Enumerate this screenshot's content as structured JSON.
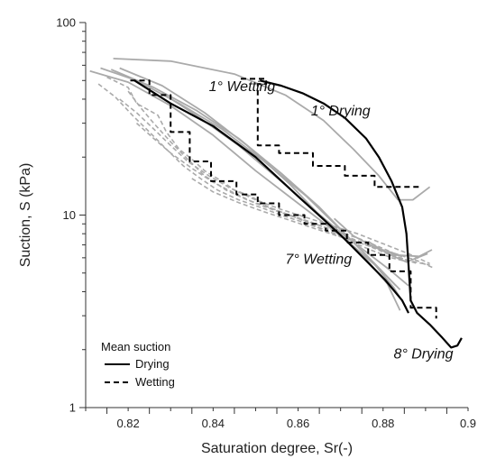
{
  "chart_data": {
    "type": "line",
    "xlabel": "Saturation degree, Sr(-)",
    "ylabel": "Suction, S (kPa)",
    "xlim": [
      0.81,
      0.9
    ],
    "ylim": [
      1,
      100
    ],
    "yscale": "log",
    "x_ticks": [
      {
        "value": 0.82,
        "label": "0.82"
      },
      {
        "value": 0.84,
        "label": "0.84"
      },
      {
        "value": 0.86,
        "label": "0.86"
      },
      {
        "value": 0.88,
        "label": "0.88"
      },
      {
        "value": 0.9,
        "label": "0.9"
      }
    ],
    "y_ticks": [
      {
        "value": 1,
        "label": "1"
      },
      {
        "value": 10,
        "label": "10"
      },
      {
        "value": 100,
        "label": "100"
      }
    ],
    "grid": false,
    "legend": {
      "title": "Mean suction",
      "position": "bottom-left",
      "entries": [
        {
          "label": "Drying",
          "style": "solid"
        },
        {
          "label": "Wetting",
          "style": "dashed"
        }
      ]
    },
    "annotations": [
      {
        "text": "1° Wetting",
        "x": 0.839,
        "y": 44
      },
      {
        "text": "1° Drying",
        "x": 0.863,
        "y": 33
      },
      {
        "text": "7° Wetting",
        "x": 0.857,
        "y": 5.6
      },
      {
        "text": "8° Drying",
        "x": 0.8825,
        "y": 1.8
      }
    ],
    "series": [
      {
        "style": "drying-mean",
        "color": "#000000",
        "x": [
          0.851,
          0.856,
          0.861,
          0.866,
          0.871,
          0.876,
          0.879,
          0.882,
          0.8845,
          0.8855,
          0.886,
          0.8865,
          0.888,
          0.891,
          0.894,
          0.896,
          0.8975,
          0.8985
        ],
        "y": [
          50,
          47,
          43,
          38,
          32,
          25,
          20,
          15,
          11,
          8,
          5.5,
          3.6,
          3.1,
          2.7,
          2.3,
          2.05,
          2.1,
          2.3
        ]
      },
      {
        "style": "drying-mean",
        "color": "#000000",
        "x": [
          0.8215,
          0.83,
          0.84,
          0.85,
          0.86,
          0.866,
          0.871,
          0.876,
          0.8805,
          0.8845,
          0.886
        ],
        "y": [
          50,
          38,
          29,
          20,
          12.5,
          9.5,
          7.5,
          5.8,
          4.6,
          3.6,
          3.1
        ]
      },
      {
        "style": "wetting-mean",
        "color": "#000000",
        "x": [
          0.8465,
          0.8525,
          0.8525,
          0.8505,
          0.8505,
          0.8555,
          0.8555,
          0.8635,
          0.8635,
          0.871,
          0.871,
          0.878,
          0.878,
          0.8885
        ],
        "y": [
          51,
          51,
          48,
          48,
          23,
          23,
          21,
          21,
          18,
          18,
          16,
          16,
          14,
          14
        ]
      },
      {
        "style": "wetting-mean",
        "color": "#000000",
        "x": [
          0.8205,
          0.825,
          0.825,
          0.83,
          0.83,
          0.8345,
          0.8345,
          0.8395,
          0.8395,
          0.8455,
          0.8455,
          0.8505,
          0.8505,
          0.8555,
          0.8555,
          0.8615,
          0.8615,
          0.8665,
          0.8665,
          0.8715,
          0.8715,
          0.8765,
          0.8765,
          0.8815,
          0.8815,
          0.8865,
          0.8865,
          0.8925,
          0.8925
        ],
        "y": [
          50,
          50,
          42,
          42,
          27,
          27,
          19,
          19,
          15,
          15,
          12.8,
          12.8,
          11.5,
          11.5,
          10,
          10,
          9,
          9,
          8.3,
          8.3,
          7.2,
          7.2,
          6.2,
          6.2,
          5.1,
          5.1,
          3.3,
          3.3,
          2.9
        ]
      },
      {
        "style": "drying-test",
        "color": "#aaaaaa",
        "x": [
          0.8165,
          0.83,
          0.845,
          0.857,
          0.866,
          0.873,
          0.879,
          0.8835,
          0.887,
          0.891
        ],
        "y": [
          65,
          63,
          54,
          42,
          31,
          22,
          16,
          12,
          12,
          14
        ]
      },
      {
        "style": "drying-test",
        "color": "#aaaaaa",
        "x": [
          0.811,
          0.82,
          0.83,
          0.84,
          0.85,
          0.86,
          0.87,
          0.876,
          0.881,
          0.884
        ],
        "y": [
          56,
          49,
          37,
          26,
          17,
          11.5,
          7.8,
          5.9,
          4.4,
          3.2
        ]
      },
      {
        "style": "drying-test",
        "color": "#aaaaaa",
        "x": [
          0.8135,
          0.822,
          0.832,
          0.842,
          0.852,
          0.862,
          0.87,
          0.877,
          0.8825,
          0.8855
        ],
        "y": [
          58,
          50,
          38,
          28,
          19,
          12.5,
          8.4,
          5.9,
          4.2,
          3.3
        ]
      },
      {
        "style": "drying-test",
        "color": "#aaaaaa",
        "x": [
          0.816,
          0.826,
          0.836,
          0.846,
          0.856,
          0.865,
          0.872,
          0.878,
          0.883
        ],
        "y": [
          57,
          46,
          35,
          25,
          16.5,
          11,
          7.6,
          5.6,
          4.3
        ]
      },
      {
        "style": "drying-test",
        "color": "#aaaaaa",
        "x": [
          0.818,
          0.828,
          0.838,
          0.848,
          0.858,
          0.866,
          0.873,
          0.879,
          0.884
        ],
        "y": [
          58,
          47,
          34,
          23,
          14.5,
          9.5,
          6.9,
          5.3,
          4.1
        ]
      },
      {
        "style": "drying-test",
        "color": "#aaaaaa",
        "x": [
          0.828,
          0.836,
          0.846,
          0.856,
          0.864,
          0.871,
          0.877,
          0.882,
          0.886
        ],
        "y": [
          43,
          33,
          23,
          15,
          10.5,
          7.8,
          6.2,
          5.1,
          4.3
        ]
      },
      {
        "style": "drying-test",
        "color": "#aaaaaa",
        "x": [
          0.8685,
          0.873,
          0.878,
          0.883,
          0.8885,
          0.8915
        ],
        "y": [
          9.6,
          7.8,
          6.8,
          6.2,
          6.1,
          6.6
        ]
      },
      {
        "style": "drying-test",
        "color": "#aaaaaa",
        "x": [
          0.8765,
          0.881,
          0.8855,
          0.8905
        ],
        "y": [
          7.3,
          6.3,
          5.7,
          6.3
        ]
      },
      {
        "style": "wetting-test",
        "color": "#aaaaaa",
        "x": [
          0.815,
          0.82,
          0.822,
          0.827,
          0.829,
          0.832,
          0.835,
          0.838,
          0.842,
          0.845,
          0.849,
          0.853,
          0.857,
          0.861,
          0.865,
          0.869,
          0.873,
          0.877,
          0.882,
          0.886
        ],
        "y": [
          52,
          46,
          38,
          33,
          27,
          22,
          19.5,
          17,
          15,
          13.5,
          12.5,
          11,
          10.2,
          9.4,
          8.6,
          7.9,
          7.2,
          6.6,
          6,
          5.7
        ]
      },
      {
        "style": "wetting-test",
        "color": "#aaaaaa",
        "x": [
          0.813,
          0.817,
          0.821,
          0.825,
          0.829,
          0.833,
          0.837,
          0.841,
          0.846,
          0.851,
          0.856,
          0.861,
          0.866,
          0.871,
          0.876,
          0.881,
          0.886,
          0.891
        ],
        "y": [
          48,
          41,
          33,
          27,
          22,
          18,
          15.5,
          13.5,
          12,
          11,
          10,
          9.2,
          8.4,
          7.7,
          7,
          6.3,
          5.8,
          5.5
        ]
      },
      {
        "style": "wetting-test",
        "color": "#aaaaaa",
        "x": [
          0.82,
          0.823,
          0.826,
          0.83,
          0.834,
          0.838,
          0.843,
          0.848,
          0.853,
          0.858,
          0.863,
          0.868,
          0.873,
          0.878,
          0.883,
          0.888
        ],
        "y": [
          44,
          36,
          30,
          24,
          19.5,
          16,
          13.5,
          12,
          11,
          10,
          9.2,
          8.3,
          7.5,
          6.8,
          6.1,
          5.6
        ]
      },
      {
        "style": "wetting-test",
        "color": "#aaaaaa",
        "x": [
          0.822,
          0.826,
          0.83,
          0.835,
          0.84,
          0.845,
          0.85,
          0.856,
          0.862,
          0.868,
          0.874,
          0.88,
          0.885
        ],
        "y": [
          30,
          25,
          21,
          17.5,
          14.8,
          13,
          11.5,
          10.3,
          9.3,
          8.4,
          7.6,
          6.7,
          6
        ]
      },
      {
        "style": "wetting-test",
        "color": "#aaaaaa",
        "x": [
          0.818,
          0.822,
          0.826,
          0.83,
          0.834,
          0.839,
          0.844,
          0.85,
          0.856,
          0.862,
          0.868,
          0.874,
          0.88,
          0.886,
          0.891
        ],
        "y": [
          40,
          34,
          28,
          23,
          19,
          16,
          13.8,
          12,
          10.7,
          9.7,
          8.8,
          8,
          7.1,
          6.3,
          5.6
        ]
      },
      {
        "style": "wetting-test",
        "color": "#aaaaaa",
        "x": [
          0.835,
          0.84,
          0.846,
          0.852,
          0.858,
          0.864,
          0.87,
          0.876,
          0.882,
          0.888,
          0.892
        ],
        "y": [
          15.5,
          13.2,
          11.6,
          10.4,
          9.4,
          8.5,
          7.7,
          7,
          6.4,
          5.8,
          5.3
        ]
      }
    ]
  }
}
